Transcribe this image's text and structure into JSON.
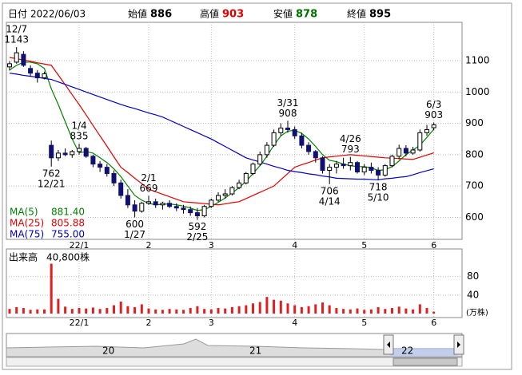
{
  "header": {
    "date_label": "日付",
    "date": "2022/06/03",
    "open_label": "始値",
    "open": 886,
    "high_label": "高値",
    "high": 903,
    "low_label": "安値",
    "low": 878,
    "close_label": "終値",
    "close": 895
  },
  "chart_data": [
    {
      "type": "candlestick",
      "categories": [
        null,
        null,
        null,
        null,
        null,
        null,
        null,
        null,
        null,
        null,
        "22/1",
        null,
        null,
        null,
        null,
        null,
        null,
        null,
        null,
        null,
        "2",
        null,
        null,
        null,
        null,
        null,
        null,
        null,
        null,
        "3",
        null,
        null,
        null,
        null,
        null,
        null,
        null,
        null,
        null,
        null,
        null,
        "4",
        null,
        null,
        null,
        null,
        null,
        null,
        null,
        null,
        null,
        "5",
        null,
        null,
        null,
        null,
        null,
        null,
        null,
        null,
        null,
        "6"
      ],
      "open": [
        1080,
        1095,
        1120,
        1075,
        1060,
        1045,
        830,
        790,
        805,
        800,
        810,
        820,
        795,
        770,
        760,
        740,
        710,
        670,
        640,
        620,
        645,
        650,
        640,
        645,
        635,
        630,
        625,
        615,
        605,
        635,
        655,
        670,
        675,
        695,
        710,
        740,
        770,
        800,
        830,
        870,
        885,
        880,
        860,
        830,
        810,
        790,
        750,
        760,
        770,
        765,
        775,
        745,
        760,
        750,
        735,
        765,
        795,
        820,
        805,
        815,
        870,
        886
      ],
      "high": [
        1098,
        1143,
        1130,
        1085,
        1070,
        1065,
        845,
        815,
        820,
        815,
        835,
        825,
        800,
        780,
        770,
        750,
        720,
        690,
        655,
        650,
        669,
        660,
        650,
        655,
        645,
        640,
        635,
        630,
        640,
        660,
        680,
        690,
        700,
        720,
        745,
        775,
        810,
        840,
        880,
        900,
        908,
        890,
        870,
        840,
        815,
        795,
        770,
        780,
        790,
        793,
        780,
        770,
        775,
        760,
        770,
        800,
        832,
        830,
        825,
        880,
        895,
        903
      ],
      "low": [
        1068,
        1090,
        1080,
        1050,
        1030,
        1040,
        762,
        780,
        795,
        790,
        800,
        790,
        760,
        745,
        730,
        700,
        660,
        630,
        600,
        615,
        640,
        630,
        625,
        630,
        620,
        612,
        605,
        592,
        600,
        630,
        650,
        660,
        670,
        690,
        705,
        735,
        765,
        790,
        825,
        860,
        870,
        850,
        820,
        800,
        775,
        740,
        706,
        740,
        755,
        750,
        740,
        735,
        740,
        718,
        730,
        760,
        785,
        795,
        800,
        810,
        860,
        878
      ],
      "close": [
        1090,
        1125,
        1085,
        1060,
        1045,
        1058,
        790,
        805,
        800,
        810,
        820,
        795,
        770,
        760,
        740,
        710,
        670,
        640,
        620,
        645,
        650,
        640,
        645,
        635,
        630,
        625,
        615,
        605,
        635,
        655,
        670,
        675,
        695,
        710,
        740,
        770,
        800,
        830,
        870,
        885,
        880,
        860,
        830,
        810,
        790,
        750,
        760,
        770,
        765,
        775,
        745,
        760,
        750,
        735,
        765,
        795,
        820,
        805,
        815,
        870,
        880,
        895
      ],
      "up_color": "#ffffff",
      "down_color": "#101070",
      "ylim": [
        530,
        1222
      ],
      "yticks": [
        600,
        700,
        800,
        900,
        1000,
        1100
      ],
      "grid": true,
      "series": [
        {
          "name": "MA(5)",
          "color": "#008000",
          "value_label": "881.40",
          "values": [
            1070,
            1085,
            1095,
            1095,
            1090,
            1075,
            1010,
            960,
            905,
            850,
            806,
            810,
            805,
            790,
            775,
            755,
            730,
            700,
            670,
            655,
            645,
            640,
            642,
            643,
            640,
            636,
            630,
            622,
            625,
            635,
            648,
            662,
            678,
            695,
            715,
            740,
            765,
            795,
            830,
            860,
            875,
            878,
            868,
            850,
            826,
            800,
            782,
            778,
            770,
            765,
            762,
            762,
            758,
            750,
            752,
            762,
            780,
            800,
            815,
            830,
            855,
            881.4
          ]
        },
        {
          "name": "MA(25)",
          "color": "#e00000",
          "value_label": "805.88",
          "values": [
            1110,
            1106,
            1102,
            1098,
            1093,
            1089,
            1085,
            1054,
            1023,
            991,
            960,
            927,
            893,
            860,
            827,
            793,
            760,
            743,
            725,
            708,
            690,
            682,
            674,
            666,
            658,
            650,
            648,
            646,
            644,
            642,
            640,
            643,
            647,
            650,
            660,
            670,
            680,
            690,
            700,
            720,
            740,
            760,
            768,
            775,
            783,
            790,
            793,
            795,
            798,
            800,
            798,
            796,
            794,
            792,
            790,
            789,
            788,
            786,
            785,
            792,
            799,
            805.88
          ]
        },
        {
          "name": "MA(75)",
          "color": "#0000c0",
          "value_label": "755.00",
          "values": [
            1060,
            1057,
            1053,
            1050,
            1047,
            1043,
            1040,
            1032,
            1024,
            1016,
            1008,
            1000,
            992,
            984,
            976,
            968,
            960,
            953,
            947,
            940,
            933,
            927,
            920,
            910,
            900,
            890,
            880,
            870,
            860,
            850,
            838,
            826,
            814,
            802,
            790,
            783,
            777,
            770,
            763,
            757,
            750,
            746,
            743,
            739,
            736,
            732,
            729,
            725,
            724,
            723,
            722,
            722,
            721,
            720,
            723,
            725,
            728,
            730,
            736,
            743,
            749,
            755
          ]
        }
      ],
      "annotations": [
        {
          "date": "12/7",
          "value": 1143
        },
        {
          "date": "12/21",
          "value": 762
        },
        {
          "date": "1/4",
          "value": 835
        },
        {
          "date": "1/27",
          "value": 600
        },
        {
          "date": "2/1",
          "value": 669
        },
        {
          "date": "2/25",
          "value": 592
        },
        {
          "date": "3/31",
          "value": 908
        },
        {
          "date": "4/14",
          "value": 706
        },
        {
          "date": "4/26",
          "value": 793
        },
        {
          "date": "5/10",
          "value": 718
        },
        {
          "date": "6/3",
          "value": 903
        }
      ]
    },
    {
      "type": "bar",
      "title": "出来高",
      "value_label": "40,800株",
      "unit": "(万株)",
      "color": "#e02020",
      "categories": [
        null,
        null,
        null,
        null,
        null,
        null,
        null,
        null,
        null,
        null,
        "22/1",
        null,
        null,
        null,
        null,
        null,
        null,
        null,
        null,
        null,
        "2",
        null,
        null,
        null,
        null,
        null,
        null,
        null,
        null,
        "3",
        null,
        null,
        null,
        null,
        null,
        null,
        null,
        null,
        null,
        null,
        null,
        "4",
        null,
        null,
        null,
        null,
        null,
        null,
        null,
        null,
        null,
        "5",
        null,
        null,
        null,
        null,
        null,
        null,
        null,
        null,
        null,
        "6"
      ],
      "values": [
        10,
        14,
        12,
        8,
        9,
        9,
        108,
        32,
        15,
        10,
        12,
        11,
        13,
        10,
        12,
        18,
        26,
        16,
        14,
        20,
        11,
        9,
        8,
        10,
        9,
        8,
        12,
        16,
        10,
        9,
        12,
        11,
        14,
        16,
        18,
        22,
        25,
        36,
        30,
        28,
        22,
        18,
        14,
        16,
        20,
        24,
        18,
        12,
        10,
        9,
        11,
        8,
        9,
        14,
        10,
        12,
        15,
        11,
        9,
        20,
        12,
        4.08
      ],
      "ylim": [
        0,
        140
      ],
      "yticks": [
        40,
        80
      ],
      "grid": true
    }
  ],
  "navigator": {
    "labels": [
      "20",
      "21",
      "22"
    ]
  }
}
